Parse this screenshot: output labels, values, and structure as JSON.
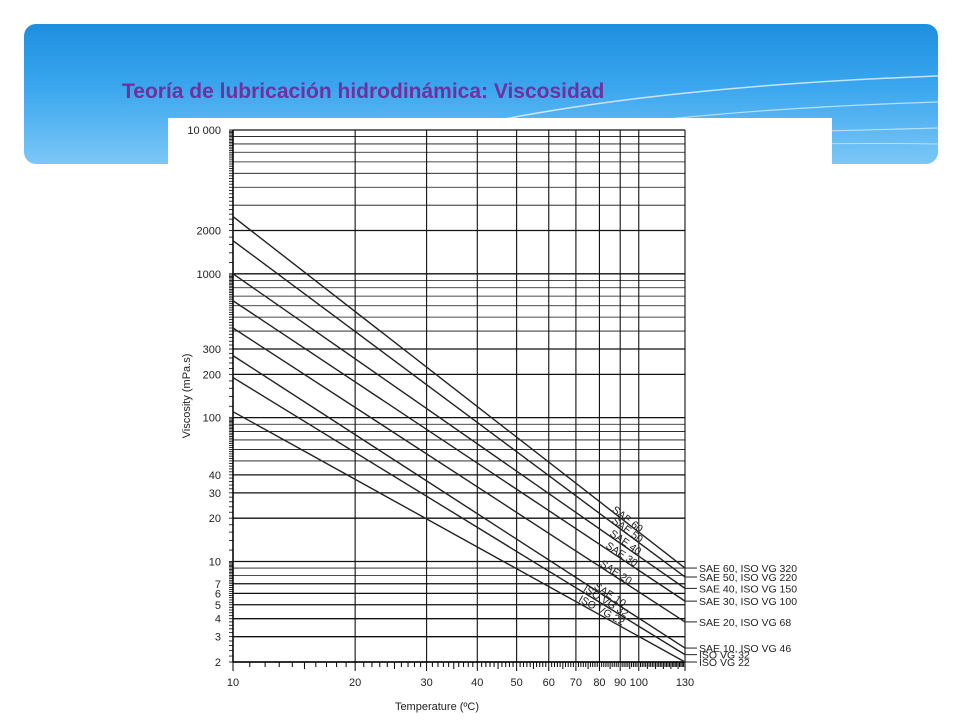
{
  "page": {
    "title": "Teoría de lubricación hidrodinámica: Viscosidad"
  },
  "colors": {
    "title": "#7030a0",
    "header_top": "#1e8fe0",
    "header_bottom": "#7cc7f6",
    "grid": "#111111"
  },
  "chart_data": {
    "type": "line",
    "title": "",
    "xlabel": "Temperature (ºC)",
    "ylabel": "Viscosity (mPa.s)",
    "xlim": [
      10,
      130
    ],
    "ylim": [
      2,
      10000
    ],
    "yscale": "log",
    "grid": true,
    "x_ticks": [
      10,
      20,
      30,
      40,
      50,
      60,
      70,
      80,
      90,
      100,
      130
    ],
    "x_tick_labels": [
      "10",
      "20",
      "30",
      "40",
      "50",
      "60",
      "70",
      "80",
      "90",
      "100",
      "130"
    ],
    "y_ticks": [
      2,
      3,
      4,
      5,
      6,
      7,
      10,
      20,
      30,
      40,
      100,
      200,
      300,
      1000,
      2000,
      10000
    ],
    "y_tick_labels": [
      "2",
      "3",
      "4",
      "5",
      "6",
      "7",
      "10",
      "20",
      "30",
      "40",
      "100",
      "200",
      "300",
      "1000",
      "2000",
      "10 000"
    ],
    "series": [
      {
        "name": "SAE 60, ISO VG 320",
        "line_label": "SAE 60",
        "x": [
          10,
          130
        ],
        "y": [
          2500,
          9.0
        ]
      },
      {
        "name": "SAE 50, ISO VG 220",
        "line_label": "SAE 50",
        "x": [
          10,
          130
        ],
        "y": [
          1700,
          7.8
        ]
      },
      {
        "name": "SAE 40, ISO VG 150",
        "line_label": "SAE 40",
        "x": [
          10,
          130
        ],
        "y": [
          1000,
          6.5
        ]
      },
      {
        "name": "SAE 30, ISO VG 100",
        "line_label": "SAE 30",
        "x": [
          10,
          130
        ],
        "y": [
          650,
          5.3
        ]
      },
      {
        "name": "SAE 20, ISO VG 68",
        "line_label": "SAE 20",
        "x": [
          10,
          130
        ],
        "y": [
          420,
          3.8
        ]
      },
      {
        "name": "SAE 10, ISO VG 46",
        "line_label": "SAE 10",
        "x": [
          10,
          130
        ],
        "y": [
          270,
          2.5
        ]
      },
      {
        "name": "ISO VG 32",
        "line_label": "ISO VG 32",
        "x": [
          10,
          130
        ],
        "y": [
          190,
          2.25
        ]
      },
      {
        "name": "ISO VG 22",
        "line_label": "ISO VG 22",
        "x": [
          10,
          130
        ],
        "y": [
          110,
          1.95
        ]
      }
    ],
    "legend": "right"
  }
}
